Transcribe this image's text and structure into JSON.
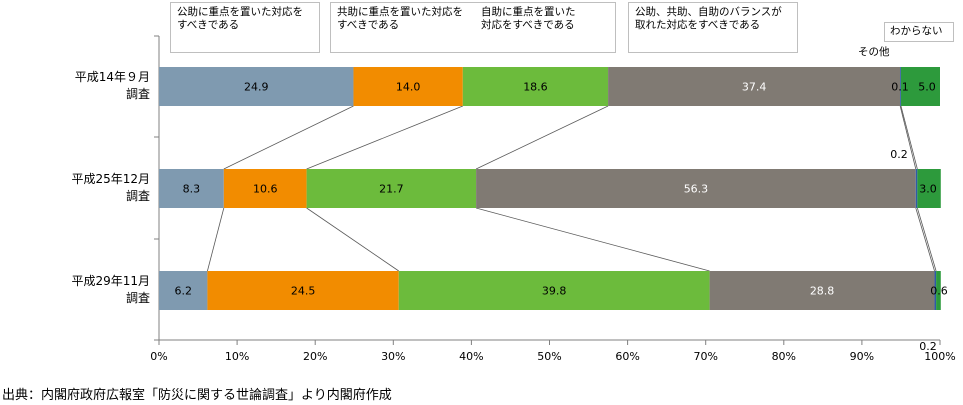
{
  "chart_data": {
    "type": "bar",
    "orientation": "horizontal",
    "stacked": "percent",
    "categories": [
      "平成14年９月\n調査",
      "平成25年12月\n調査",
      "平成29年11月\n調査"
    ],
    "series": [
      {
        "name": "公助に重点を置いた対応を\nすべきである",
        "color": "#7f9ab0",
        "values": [
          24.9,
          8.3,
          6.2
        ]
      },
      {
        "name": "共助に重点を置いた対応を\nすべきである",
        "color": "#f28c00",
        "values": [
          14.0,
          10.6,
          24.5
        ]
      },
      {
        "name": "自助に重点を置いた\n対応をすべきである",
        "color": "#6cbb3c",
        "values": [
          18.6,
          21.7,
          39.8
        ]
      },
      {
        "name": "公助、共助、自助のバランスが\n取れた対応をすべきである",
        "color": "#807a73",
        "values": [
          37.4,
          56.3,
          28.8
        ]
      },
      {
        "name": "その他",
        "color": "#2e5aa8",
        "values": [
          0.1,
          0.2,
          0.2
        ]
      },
      {
        "name": "わからない",
        "color": "#2d9a3c",
        "values": [
          5.0,
          3.0,
          0.6
        ]
      }
    ],
    "value_labels": [
      [
        "24.9",
        "14.0",
        "18.6",
        "37.4",
        "0.1",
        "5.0"
      ],
      [
        "8.3",
        "10.6",
        "21.7",
        "56.3",
        "0.2",
        "3.0"
      ],
      [
        "6.2",
        "24.5",
        "39.8",
        "28.8",
        "0.2",
        "0.6"
      ]
    ],
    "x_ticks": [
      "0%",
      "10%",
      "20%",
      "30%",
      "40%",
      "50%",
      "60%",
      "70%",
      "80%",
      "90%",
      "100%"
    ],
    "xlim": [
      0,
      100
    ],
    "grid": false,
    "legend_placement": "top"
  },
  "source": "出典：内閣府政府広報室「防災に関する世論調査」より内閣府作成"
}
